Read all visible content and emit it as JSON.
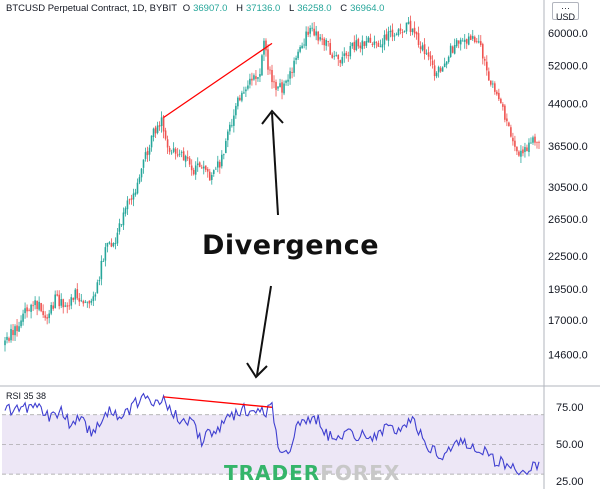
{
  "header": {
    "symbol": "BTCUSD Perpetual Contract, 1D, BYBIT",
    "o_label": "O",
    "o_value": "36907.0",
    "h_label": "H",
    "h_value": "37136.0",
    "l_label": "L",
    "l_value": "36258.0",
    "c_label": "C",
    "c_value": "36964.0"
  },
  "currency_badge": {
    "dots": "···",
    "label": "USD"
  },
  "annotation": {
    "text": "Divergence"
  },
  "watermark": {
    "part1": "TRADER",
    "part2": "FOREX",
    "logo_style": "image"
  },
  "colors": {
    "up": "#26a69a",
    "down": "#ef5350",
    "rsi_line": "#3f3fd0",
    "rsi_band": "#ede7f6",
    "divergence_line": "#ff0000",
    "annotation": "#111111"
  },
  "chart_data": [
    {
      "type": "candlestick",
      "title": "BTCUSD Perpetual Contract, 1D, BYBIT",
      "y_scale": "log",
      "y_ticks": [
        14600,
        17000,
        19500,
        22500,
        26500,
        30500,
        36500,
        44000,
        52000,
        60000
      ],
      "y_tick_labels": [
        "14600.0",
        "17000.0",
        "19500.0",
        "22500.0",
        "26500.0",
        "30500.0",
        "36500.0",
        "44000.0",
        "52000.0",
        "60000.0"
      ],
      "ylim": [
        12800,
        66000
      ],
      "anchors_close": [
        [
          0,
          15500
        ],
        [
          5,
          16300
        ],
        [
          10,
          17800
        ],
        [
          15,
          18500
        ],
        [
          20,
          17300
        ],
        [
          25,
          18600
        ],
        [
          30,
          18300
        ],
        [
          35,
          19000
        ],
        [
          40,
          18700
        ],
        [
          45,
          18900
        ],
        [
          50,
          23500
        ],
        [
          55,
          24500
        ],
        [
          60,
          28000
        ],
        [
          65,
          30500
        ],
        [
          70,
          35000
        ],
        [
          75,
          39500
        ],
        [
          78,
          41000
        ],
        [
          82,
          36000
        ],
        [
          88,
          35500
        ],
        [
          93,
          33000
        ],
        [
          98,
          33500
        ],
        [
          102,
          31500
        ],
        [
          108,
          34500
        ],
        [
          112,
          39500
        ],
        [
          118,
          47000
        ],
        [
          123,
          48500
        ],
        [
          127,
          51000
        ],
        [
          129,
          57000
        ],
        [
          133,
          48000
        ],
        [
          138,
          47000
        ],
        [
          143,
          51500
        ],
        [
          148,
          57000
        ],
        [
          152,
          61500
        ],
        [
          157,
          59000
        ],
        [
          162,
          56000
        ],
        [
          166,
          53000
        ],
        [
          170,
          55500
        ],
        [
          175,
          57000
        ],
        [
          180,
          58000
        ],
        [
          185,
          57000
        ],
        [
          190,
          59500
        ],
        [
          195,
          59500
        ],
        [
          200,
          62500
        ],
        [
          205,
          58500
        ],
        [
          210,
          54000
        ],
        [
          215,
          50000
        ],
        [
          220,
          54000
        ],
        [
          225,
          58000
        ],
        [
          230,
          58000
        ],
        [
          235,
          59000
        ],
        [
          240,
          51000
        ],
        [
          245,
          46000
        ],
        [
          249,
          42000
        ],
        [
          253,
          36500
        ],
        [
          258,
          35500
        ],
        [
          263,
          37500
        ],
        [
          266,
          36964
        ]
      ],
      "divergence_line": {
        "x": [
          79,
          133
        ],
        "y": [
          41500,
          57500
        ]
      }
    },
    {
      "type": "line",
      "title": "RSI 35 38",
      "series": [
        {
          "name": "RSI 35 38"
        }
      ],
      "y_ticks": [
        25,
        50,
        75
      ],
      "y_tick_labels": [
        "25.00",
        "50.00",
        "75.00"
      ],
      "ylim": [
        20,
        88
      ],
      "band": [
        30,
        70
      ],
      "anchors": [
        [
          0,
          76
        ],
        [
          4,
          72
        ],
        [
          8,
          78
        ],
        [
          12,
          74
        ],
        [
          18,
          76
        ],
        [
          22,
          67
        ],
        [
          28,
          74
        ],
        [
          33,
          63
        ],
        [
          38,
          71
        ],
        [
          43,
          56
        ],
        [
          48,
          66
        ],
        [
          53,
          73
        ],
        [
          58,
          69
        ],
        [
          63,
          75
        ],
        [
          68,
          80
        ],
        [
          72,
          79
        ],
        [
          79,
          82
        ],
        [
          84,
          70
        ],
        [
          88,
          66
        ],
        [
          93,
          64
        ],
        [
          98,
          53
        ],
        [
          102,
          58
        ],
        [
          108,
          62
        ],
        [
          114,
          70
        ],
        [
          120,
          74
        ],
        [
          125,
          72
        ],
        [
          130,
          73
        ],
        [
          133,
          75
        ],
        [
          136,
          50
        ],
        [
          141,
          45
        ],
        [
          146,
          62
        ],
        [
          151,
          68
        ],
        [
          156,
          66
        ],
        [
          162,
          55
        ],
        [
          168,
          58
        ],
        [
          174,
          57
        ],
        [
          180,
          55
        ],
        [
          186,
          58
        ],
        [
          192,
          60
        ],
        [
          198,
          61
        ],
        [
          203,
          66
        ],
        [
          208,
          56
        ],
        [
          212,
          47
        ],
        [
          217,
          42
        ],
        [
          222,
          48
        ],
        [
          227,
          53
        ],
        [
          232,
          49
        ],
        [
          238,
          47
        ],
        [
          242,
          41
        ],
        [
          246,
          38
        ],
        [
          250,
          36
        ],
        [
          254,
          35
        ],
        [
          258,
          31
        ],
        [
          262,
          34
        ],
        [
          266,
          35
        ]
      ],
      "divergence_line": {
        "x": [
          79,
          133
        ],
        "y": [
          82,
          75
        ]
      }
    }
  ]
}
